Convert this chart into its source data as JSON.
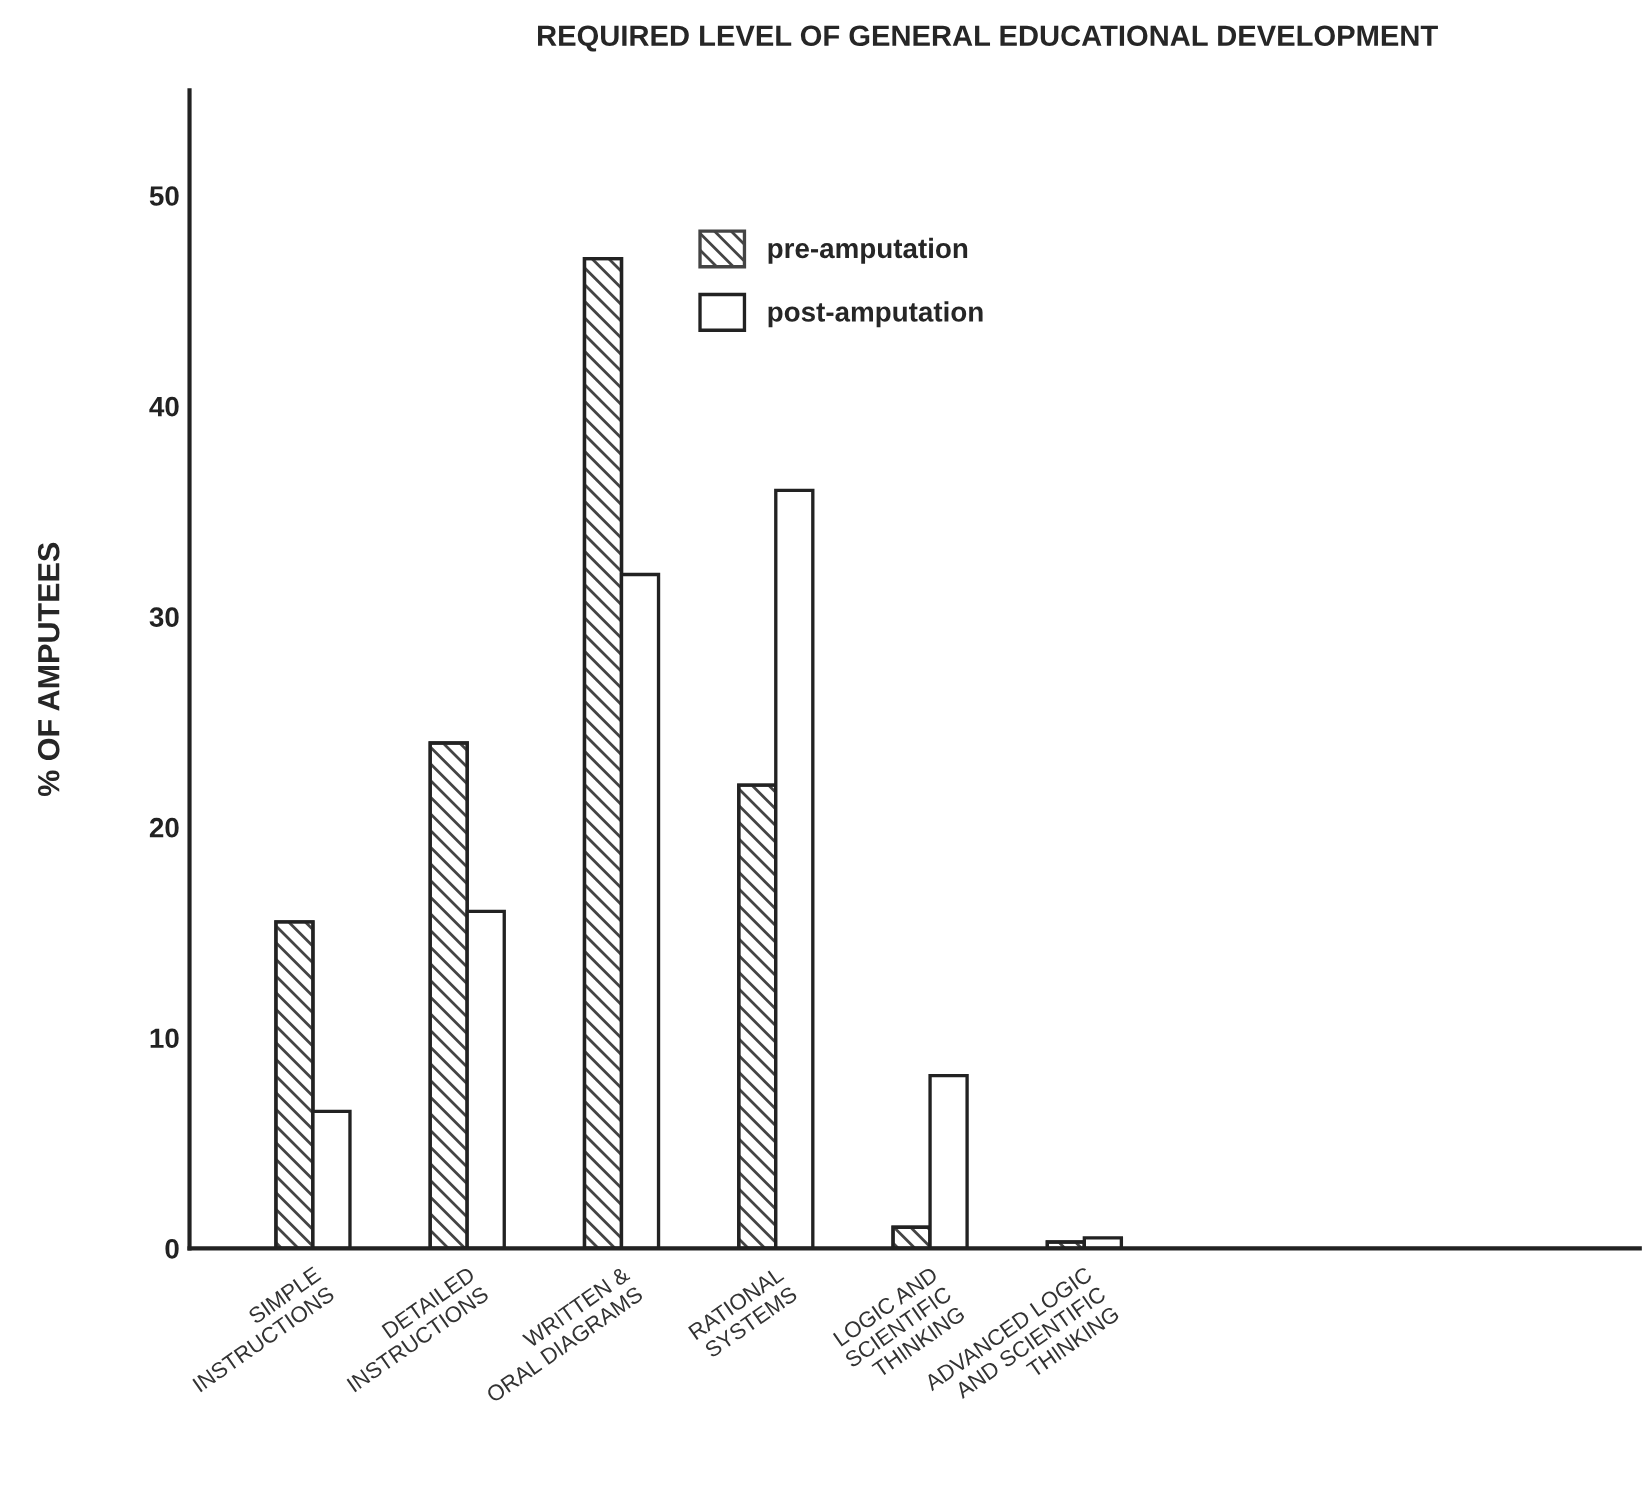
{
  "chart_data": {
    "type": "bar",
    "title": "REQUIRED LEVEL OF GENERAL EDUCATIONAL DEVELOPMENT",
    "ylabel": "% OF AMPUTEES",
    "categories": [
      "SIMPLE\nINSTRUCTIONS",
      "DETAILED\nINSTRUCTIONS",
      "WRITTEN &\nORAL DIAGRAMS",
      "RATIONAL\nSYSTEMS",
      "LOGIC AND\nSCIENTIFIC\nTHINKING",
      "ADVANCED LOGIC\nAND SCIENTIFIC\nTHINKING"
    ],
    "series": [
      {
        "name": "pre-amputation",
        "color": "#444444",
        "values": [
          15.5,
          24,
          47,
          22,
          1,
          0.3
        ]
      },
      {
        "name": "post-amputation",
        "color": "#ffffff",
        "values": [
          6.5,
          16,
          32,
          36,
          8.2,
          0.5
        ]
      }
    ],
    "ylim": [
      0,
      55
    ],
    "yticks": [
      0,
      10,
      20,
      30,
      40,
      50
    ],
    "grid": false,
    "legend": "top"
  }
}
